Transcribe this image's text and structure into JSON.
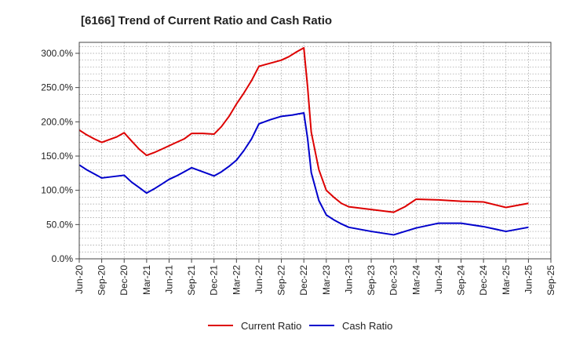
{
  "chart_data": {
    "type": "line",
    "title": "[6166]  Trend of Current Ratio and Cash Ratio",
    "xlabel": "",
    "ylabel": "",
    "ylim": [
      0,
      316
    ],
    "y_ticks": [
      0,
      50,
      100,
      150,
      200,
      250,
      300
    ],
    "y_tick_labels": [
      "0.0%",
      "50.0%",
      "100.0%",
      "150.0%",
      "200.0%",
      "250.0%",
      "300.0%"
    ],
    "x_tick_labels": [
      "Jun-20",
      "Sep-20",
      "Dec-20",
      "Mar-21",
      "Jun-21",
      "Sep-21",
      "Dec-21",
      "Mar-22",
      "Jun-22",
      "Sep-22",
      "Dec-22",
      "Mar-23",
      "Jun-23",
      "Sep-23",
      "Dec-23",
      "Mar-24",
      "Jun-24",
      "Sep-24",
      "Dec-24",
      "Mar-25",
      "Jun-25",
      "Sep-25"
    ],
    "grid": true,
    "legend_position": "bottom-center",
    "series": [
      {
        "name": "Current Ratio",
        "color": "#dd0000",
        "points": [
          [
            0,
            188
          ],
          [
            0.33,
            181
          ],
          [
            0.67,
            175
          ],
          [
            1,
            170
          ],
          [
            1.33,
            174
          ],
          [
            1.67,
            178
          ],
          [
            2,
            184
          ],
          [
            2.33,
            172
          ],
          [
            2.67,
            160
          ],
          [
            3,
            151
          ],
          [
            3.33,
            155
          ],
          [
            3.67,
            160
          ],
          [
            4,
            165
          ],
          [
            4.33,
            170
          ],
          [
            4.67,
            175
          ],
          [
            5,
            183
          ],
          [
            5.5,
            183
          ],
          [
            6,
            182
          ],
          [
            6.33,
            193
          ],
          [
            6.67,
            208
          ],
          [
            7,
            226
          ],
          [
            7.33,
            242
          ],
          [
            7.67,
            260
          ],
          [
            8,
            281
          ],
          [
            8.33,
            284
          ],
          [
            8.67,
            287
          ],
          [
            9,
            290
          ],
          [
            9.33,
            295
          ],
          [
            9.67,
            302
          ],
          [
            10,
            308
          ],
          [
            10.17,
            250
          ],
          [
            10.33,
            185
          ],
          [
            10.67,
            130
          ],
          [
            11,
            100
          ],
          [
            11.33,
            90
          ],
          [
            11.67,
            81
          ],
          [
            12,
            76
          ],
          [
            13,
            72
          ],
          [
            14,
            68
          ],
          [
            14.5,
            76
          ],
          [
            15,
            87
          ],
          [
            16,
            86
          ],
          [
            17,
            84
          ],
          [
            18,
            83
          ],
          [
            19,
            75
          ],
          [
            20,
            81
          ]
        ]
      },
      {
        "name": "Cash Ratio",
        "color": "#0000cc",
        "points": [
          [
            0,
            137
          ],
          [
            0.33,
            130
          ],
          [
            0.67,
            124
          ],
          [
            1,
            118
          ],
          [
            1.5,
            120
          ],
          [
            2,
            122
          ],
          [
            2.33,
            112
          ],
          [
            2.67,
            104
          ],
          [
            3,
            96
          ],
          [
            3.33,
            102
          ],
          [
            3.67,
            109
          ],
          [
            4,
            116
          ],
          [
            4.33,
            121
          ],
          [
            4.67,
            127
          ],
          [
            5,
            133
          ],
          [
            5.5,
            127
          ],
          [
            6,
            121
          ],
          [
            6.33,
            127
          ],
          [
            6.67,
            135
          ],
          [
            7,
            144
          ],
          [
            7.33,
            158
          ],
          [
            7.67,
            175
          ],
          [
            8,
            197
          ],
          [
            8.5,
            203
          ],
          [
            9,
            208
          ],
          [
            9.5,
            210
          ],
          [
            10,
            213
          ],
          [
            10.17,
            175
          ],
          [
            10.33,
            126
          ],
          [
            10.67,
            85
          ],
          [
            11,
            64
          ],
          [
            11.33,
            57
          ],
          [
            11.67,
            51
          ],
          [
            12,
            46
          ],
          [
            13,
            40
          ],
          [
            14,
            35
          ],
          [
            14.5,
            40
          ],
          [
            15,
            45
          ],
          [
            16,
            52
          ],
          [
            17,
            52
          ],
          [
            18,
            47
          ],
          [
            19,
            40
          ],
          [
            20,
            46
          ]
        ]
      }
    ]
  }
}
